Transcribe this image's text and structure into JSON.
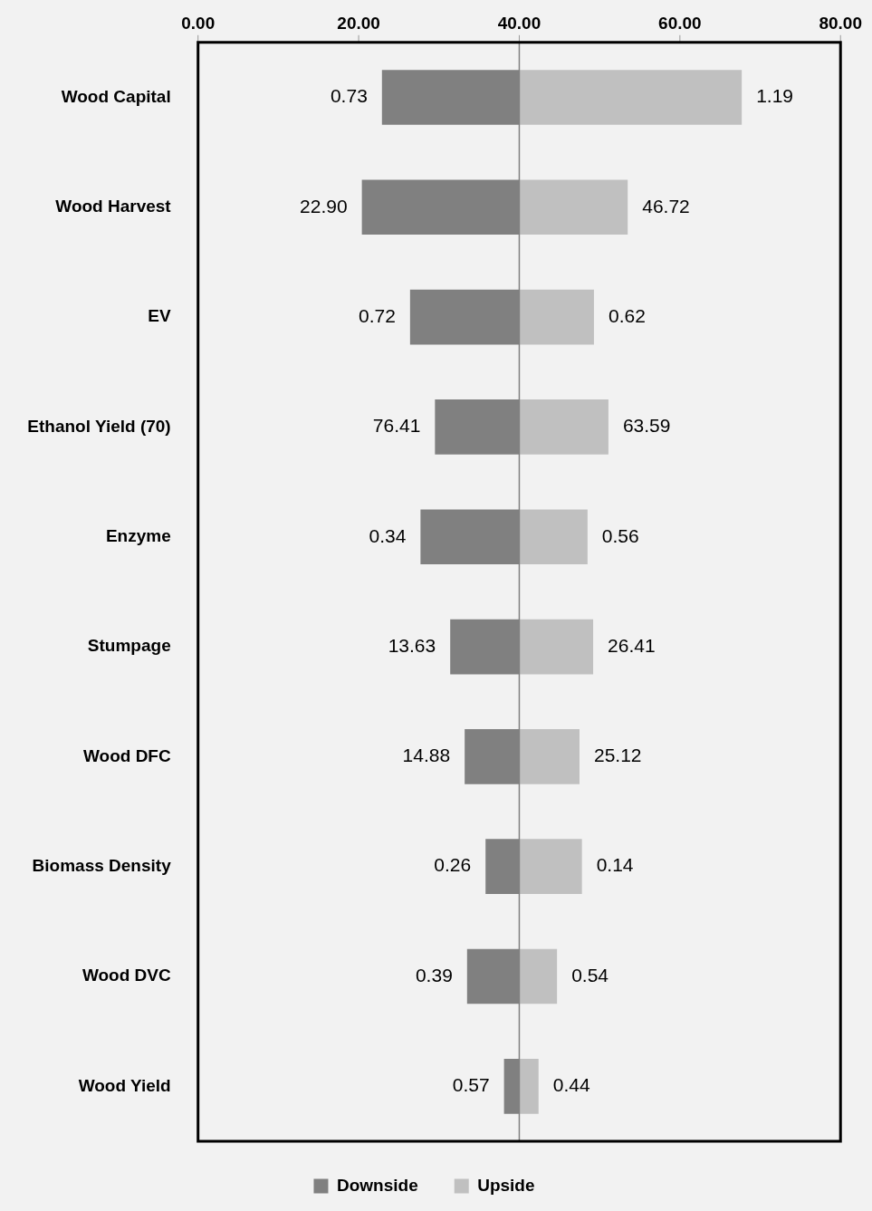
{
  "chart_data": {
    "type": "bar",
    "orientation": "horizontal",
    "categories": [
      "Wood Capital",
      "Wood Harvest",
      "EV",
      "Ethanol Yield (70)",
      "Enzyme",
      "Stumpage",
      "Wood DFC",
      "Biomass Density",
      "Wood DVC",
      "Wood Yield"
    ],
    "series": [
      {
        "name": "Downside",
        "color": "#808080",
        "base": [
          22.9,
          20.4,
          26.4,
          29.5,
          27.7,
          31.4,
          33.2,
          35.8,
          33.5,
          38.1
        ],
        "values": [
          17.1,
          19.6,
          13.6,
          10.5,
          12.3,
          8.6,
          6.8,
          4.2,
          6.5,
          1.9
        ]
      },
      {
        "name": "Upside",
        "color": "#c0c0c0",
        "base": [
          40,
          40,
          40,
          40,
          40,
          40,
          40,
          40,
          40,
          40
        ],
        "values": [
          27.7,
          13.5,
          9.3,
          11.1,
          8.5,
          9.2,
          7.5,
          7.8,
          4.7,
          2.4
        ]
      }
    ],
    "annotations": [
      {
        "text": "0.73",
        "x": 22.9,
        "y": "Wood Capital"
      },
      {
        "text": "22.90",
        "x": 20.4,
        "y": "Wood Harvest"
      },
      {
        "text": "0.72",
        "x": 26.4,
        "y": "EV"
      },
      {
        "text": "76.41",
        "x": 29.5,
        "y": "Ethanol Yield (70)"
      },
      {
        "text": "0.34",
        "x": 27.7,
        "y": "Enzyme"
      },
      {
        "text": "13.63",
        "x": 31.4,
        "y": "Stumpage"
      },
      {
        "text": "14.88",
        "x": 33.2,
        "y": "Wood DFC"
      },
      {
        "text": "0.26",
        "x": 35.8,
        "y": "Biomass Density"
      },
      {
        "text": "0.39",
        "x": 33.5,
        "y": "Wood DVC"
      },
      {
        "text": "0.57",
        "x": 38.1,
        "y": "Wood Yield"
      },
      {
        "text": "1.19",
        "x": 67.7,
        "y": "Wood Capital"
      },
      {
        "text": "46.72",
        "x": 53.5,
        "y": "Wood Harvest"
      },
      {
        "text": "0.62",
        "x": 49.3,
        "y": "EV"
      },
      {
        "text": "63.59",
        "x": 51.1,
        "y": "Ethanol Yield (70)"
      },
      {
        "text": "0.56",
        "x": 48.5,
        "y": "Enzyme"
      },
      {
        "text": "26.41",
        "x": 49.2,
        "y": "Stumpage"
      },
      {
        "text": "25.12",
        "x": 47.5,
        "y": "Wood DFC"
      },
      {
        "text": "0.14",
        "x": 47.8,
        "y": "Biomass Density"
      },
      {
        "text": "0.54",
        "x": 44.7,
        "y": "Wood DVC"
      },
      {
        "text": "0.44",
        "x": 42.4,
        "y": "Wood Yield"
      }
    ],
    "stacked": false,
    "xlim": [
      0,
      80
    ],
    "xticks": [
      {
        "value": 0,
        "label": "0.00"
      },
      {
        "value": 20,
        "label": "20.00"
      },
      {
        "value": 40,
        "label": "40.00"
      },
      {
        "value": 60,
        "label": "60.00"
      },
      {
        "value": 80,
        "label": "80.00"
      }
    ],
    "ref_lines": [
      {
        "axis": "x",
        "value": 40,
        "color": "#808080"
      }
    ],
    "grid": false,
    "legend": "bottom"
  }
}
